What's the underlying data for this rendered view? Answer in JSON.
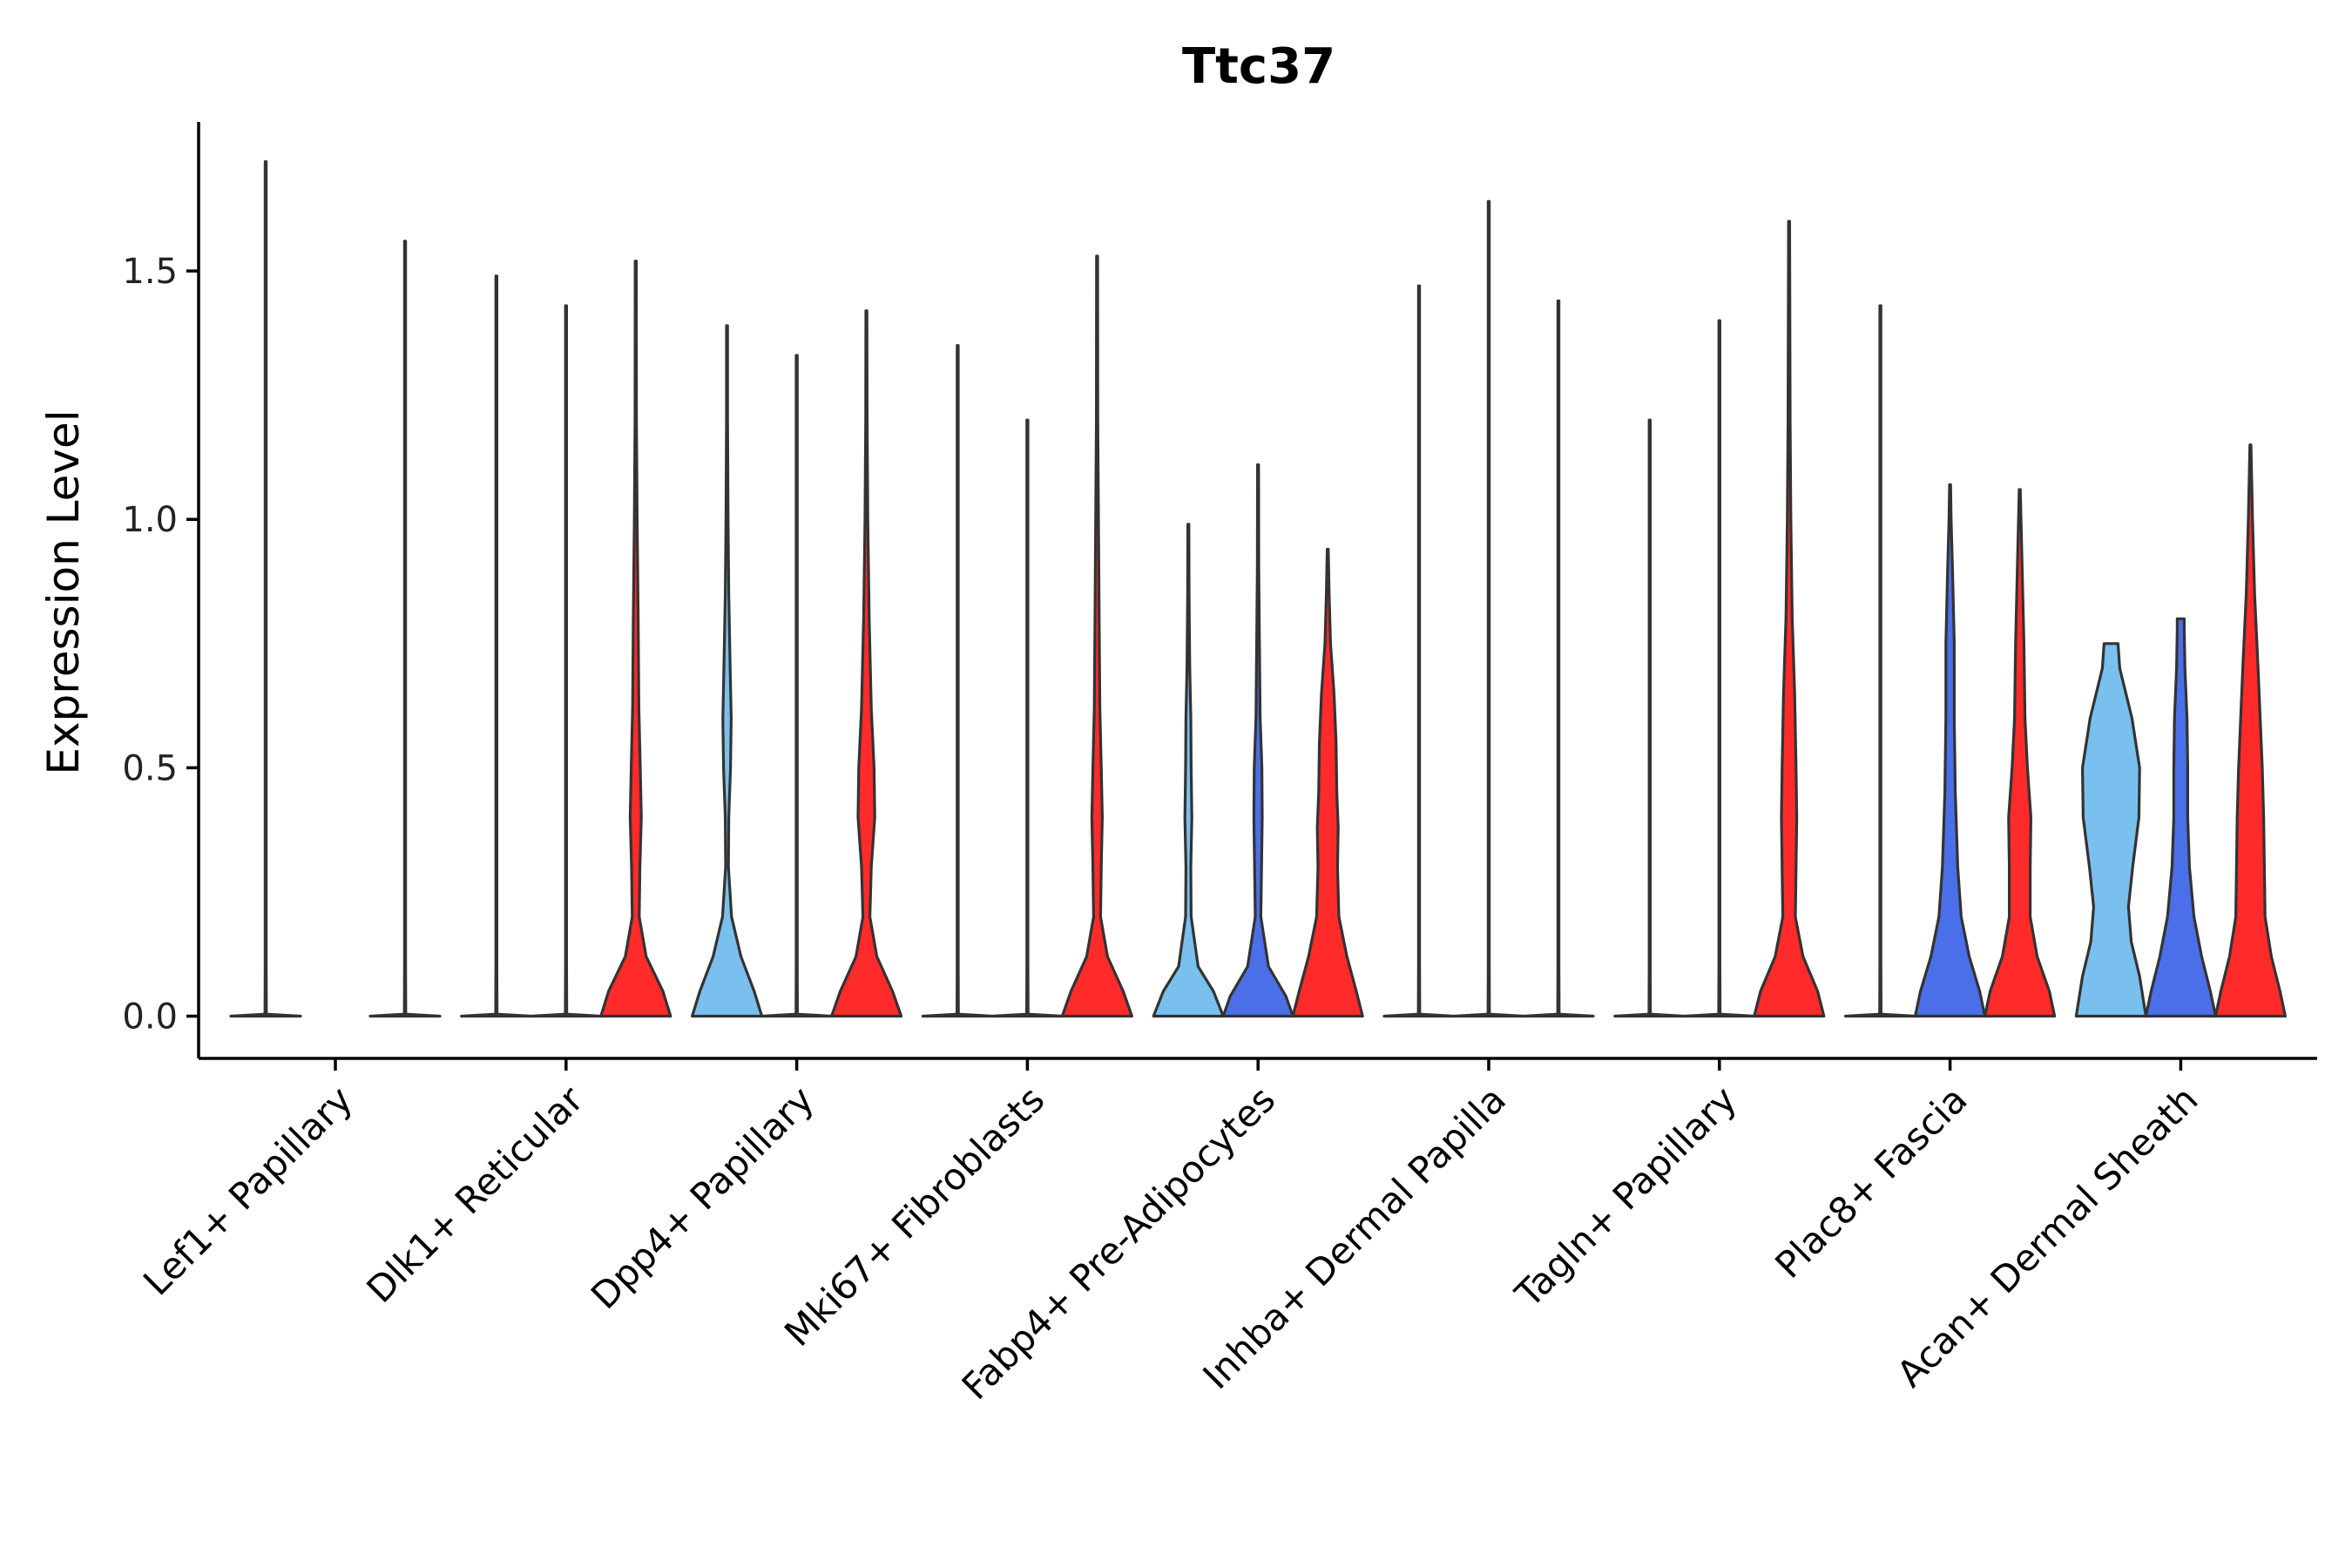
{
  "chart_data": {
    "type": "violin",
    "title": "Ttc37",
    "xlabel": "",
    "ylabel": "Expression Level",
    "ylim": [
      -0.085,
      1.8
    ],
    "yticks": [
      0.0,
      0.5,
      1.0,
      1.5
    ],
    "ytick_labels": [
      "0.0",
      "0.5",
      "1.0",
      "1.5"
    ],
    "grid": false,
    "legend": "none",
    "colors": {
      "group_a": "#7ac0ee",
      "group_b": "#4a6fe8",
      "group_c": "#ff2a2a",
      "outline": "#333333"
    },
    "categories": [
      "Lef1+ Papillary",
      "Dlk1+ Reticular",
      "Dpp4+ Papillary",
      "Mki67+ Fibroblasts",
      "Fabp4+ Pre-Adipocytes",
      "Inhba+ Dermal Papilla",
      "Tagln+ Papillary",
      "Plac8+ Fascia",
      "Acan+ Dermal Sheath"
    ],
    "violins": [
      {
        "category": "Lef1+ Papillary",
        "group": "group_a",
        "max": 1.72,
        "density": [
          [
            0,
            1
          ],
          [
            0.004,
            0.02
          ],
          [
            0.1,
            0.015
          ],
          [
            1.72,
            0.015
          ]
        ]
      },
      {
        "category": "Lef1+ Papillary",
        "group": "group_c",
        "max": 1.56,
        "density": [
          [
            0,
            1
          ],
          [
            0.004,
            0.02
          ],
          [
            0.1,
            0.015
          ],
          [
            1.56,
            0.015
          ]
        ]
      },
      {
        "category": "Dlk1+ Reticular",
        "group": "group_a",
        "max": 1.49,
        "density": [
          [
            0,
            1
          ],
          [
            0.004,
            0.02
          ],
          [
            0.1,
            0.015
          ],
          [
            1.49,
            0.015
          ]
        ]
      },
      {
        "category": "Dlk1+ Reticular",
        "group": "group_b",
        "max": 1.43,
        "density": [
          [
            0,
            1
          ],
          [
            0.004,
            0.02
          ],
          [
            0.1,
            0.015
          ],
          [
            1.43,
            0.015
          ]
        ]
      },
      {
        "category": "Dlk1+ Reticular",
        "group": "group_c",
        "max": 1.52,
        "density": [
          [
            0,
            1
          ],
          [
            0.05,
            0.78
          ],
          [
            0.12,
            0.3
          ],
          [
            0.2,
            0.1
          ],
          [
            0.3,
            0.12
          ],
          [
            0.4,
            0.16
          ],
          [
            0.5,
            0.13
          ],
          [
            0.62,
            0.09
          ],
          [
            0.8,
            0.07
          ],
          [
            1.0,
            0.04
          ],
          [
            1.2,
            0.02
          ],
          [
            1.52,
            0.015
          ]
        ]
      },
      {
        "category": "Dpp4+ Papillary",
        "group": "group_a",
        "max": 1.39,
        "density": [
          [
            0,
            1
          ],
          [
            0.05,
            0.78
          ],
          [
            0.12,
            0.4
          ],
          [
            0.2,
            0.13
          ],
          [
            0.3,
            0.04
          ],
          [
            0.4,
            0.05
          ],
          [
            0.5,
            0.1
          ],
          [
            0.6,
            0.12
          ],
          [
            0.7,
            0.09
          ],
          [
            0.85,
            0.05
          ],
          [
            1.0,
            0.03
          ],
          [
            1.2,
            0.015
          ],
          [
            1.39,
            0.015
          ]
        ]
      },
      {
        "category": "Dpp4+ Papillary",
        "group": "group_b",
        "max": 1.33,
        "density": [
          [
            0,
            1
          ],
          [
            0.004,
            0.02
          ],
          [
            0.1,
            0.015
          ],
          [
            1.33,
            0.015
          ]
        ]
      },
      {
        "category": "Dpp4+ Papillary",
        "group": "group_c",
        "max": 1.42,
        "density": [
          [
            0,
            1
          ],
          [
            0.05,
            0.75
          ],
          [
            0.12,
            0.3
          ],
          [
            0.2,
            0.1
          ],
          [
            0.3,
            0.14
          ],
          [
            0.4,
            0.24
          ],
          [
            0.5,
            0.22
          ],
          [
            0.62,
            0.14
          ],
          [
            0.8,
            0.08
          ],
          [
            1.0,
            0.04
          ],
          [
            1.2,
            0.02
          ],
          [
            1.42,
            0.015
          ]
        ]
      },
      {
        "category": "Mki67+ Fibroblasts",
        "group": "group_a",
        "max": 1.35,
        "density": [
          [
            0,
            1
          ],
          [
            0.004,
            0.02
          ],
          [
            0.1,
            0.015
          ],
          [
            1.35,
            0.015
          ]
        ]
      },
      {
        "category": "Mki67+ Fibroblasts",
        "group": "group_b",
        "max": 1.2,
        "density": [
          [
            0,
            1
          ],
          [
            0.004,
            0.02
          ],
          [
            0.1,
            0.015
          ],
          [
            1.2,
            0.015
          ]
        ]
      },
      {
        "category": "Mki67+ Fibroblasts",
        "group": "group_c",
        "max": 1.53,
        "density": [
          [
            0,
            1
          ],
          [
            0.05,
            0.75
          ],
          [
            0.12,
            0.3
          ],
          [
            0.2,
            0.1
          ],
          [
            0.3,
            0.12
          ],
          [
            0.4,
            0.15
          ],
          [
            0.5,
            0.12
          ],
          [
            0.62,
            0.08
          ],
          [
            0.8,
            0.06
          ],
          [
            1.0,
            0.04
          ],
          [
            1.2,
            0.02
          ],
          [
            1.53,
            0.015
          ]
        ]
      },
      {
        "category": "Fabp4+ Pre-Adipocytes",
        "group": "group_a",
        "max": 0.99,
        "density": [
          [
            0,
            1
          ],
          [
            0.05,
            0.72
          ],
          [
            0.1,
            0.28
          ],
          [
            0.2,
            0.08
          ],
          [
            0.3,
            0.07
          ],
          [
            0.4,
            0.1
          ],
          [
            0.5,
            0.08
          ],
          [
            0.6,
            0.07
          ],
          [
            0.7,
            0.04
          ],
          [
            0.85,
            0.02
          ],
          [
            0.99,
            0.015
          ]
        ]
      },
      {
        "category": "Fabp4+ Pre-Adipocytes",
        "group": "group_b",
        "max": 1.11,
        "density": [
          [
            0,
            1
          ],
          [
            0.04,
            0.8
          ],
          [
            0.1,
            0.3
          ],
          [
            0.2,
            0.08
          ],
          [
            0.3,
            0.1
          ],
          [
            0.4,
            0.12
          ],
          [
            0.5,
            0.11
          ],
          [
            0.6,
            0.06
          ],
          [
            0.75,
            0.04
          ],
          [
            0.9,
            0.02
          ],
          [
            1.11,
            0.015
          ]
        ]
      },
      {
        "category": "Fabp4+ Pre-Adipocytes",
        "group": "group_c",
        "max": 0.94,
        "density": [
          [
            0,
            1
          ],
          [
            0.05,
            0.82
          ],
          [
            0.12,
            0.55
          ],
          [
            0.2,
            0.32
          ],
          [
            0.3,
            0.28
          ],
          [
            0.38,
            0.3
          ],
          [
            0.45,
            0.26
          ],
          [
            0.55,
            0.24
          ],
          [
            0.65,
            0.18
          ],
          [
            0.75,
            0.08
          ],
          [
            0.85,
            0.04
          ],
          [
            0.94,
            0.015
          ]
        ]
      },
      {
        "category": "Inhba+ Dermal Papilla",
        "group": "group_a",
        "max": 1.47,
        "density": [
          [
            0,
            1
          ],
          [
            0.004,
            0.02
          ],
          [
            0.1,
            0.015
          ],
          [
            1.47,
            0.015
          ]
        ]
      },
      {
        "category": "Inhba+ Dermal Papilla",
        "group": "group_b",
        "max": 1.64,
        "density": [
          [
            0,
            1
          ],
          [
            0.004,
            0.02
          ],
          [
            0.1,
            0.015
          ],
          [
            1.64,
            0.015
          ]
        ]
      },
      {
        "category": "Inhba+ Dermal Papilla",
        "group": "group_c",
        "max": 1.44,
        "density": [
          [
            0,
            1
          ],
          [
            0.004,
            0.02
          ],
          [
            0.1,
            0.015
          ],
          [
            1.44,
            0.015
          ]
        ]
      },
      {
        "category": "Tagln+ Papillary",
        "group": "group_a",
        "max": 1.2,
        "density": [
          [
            0,
            1
          ],
          [
            0.004,
            0.02
          ],
          [
            0.1,
            0.015
          ],
          [
            1.2,
            0.015
          ]
        ]
      },
      {
        "category": "Tagln+ Papillary",
        "group": "group_b",
        "max": 1.4,
        "density": [
          [
            0,
            1
          ],
          [
            0.004,
            0.02
          ],
          [
            0.1,
            0.015
          ],
          [
            1.4,
            0.015
          ]
        ]
      },
      {
        "category": "Tagln+ Papillary",
        "group": "group_c",
        "max": 1.6,
        "density": [
          [
            0,
            1
          ],
          [
            0.05,
            0.82
          ],
          [
            0.12,
            0.4
          ],
          [
            0.2,
            0.18
          ],
          [
            0.3,
            0.2
          ],
          [
            0.4,
            0.22
          ],
          [
            0.5,
            0.2
          ],
          [
            0.65,
            0.16
          ],
          [
            0.8,
            0.09
          ],
          [
            1.0,
            0.05
          ],
          [
            1.2,
            0.03
          ],
          [
            1.6,
            0.015
          ]
        ]
      },
      {
        "category": "Plac8+ Fascia",
        "group": "group_a",
        "max": 1.43,
        "density": [
          [
            0,
            1
          ],
          [
            0.004,
            0.02
          ],
          [
            0.1,
            0.015
          ],
          [
            1.43,
            0.015
          ]
        ]
      },
      {
        "category": "Plac8+ Fascia",
        "group": "group_b",
        "max": 1.07,
        "density": [
          [
            0,
            1
          ],
          [
            0.05,
            0.85
          ],
          [
            0.12,
            0.55
          ],
          [
            0.2,
            0.32
          ],
          [
            0.3,
            0.22
          ],
          [
            0.45,
            0.15
          ],
          [
            0.6,
            0.12
          ],
          [
            0.75,
            0.12
          ],
          [
            0.9,
            0.07
          ],
          [
            1.0,
            0.03
          ],
          [
            1.07,
            0.015
          ]
        ]
      },
      {
        "category": "Plac8+ Fascia",
        "group": "group_c",
        "max": 1.06,
        "density": [
          [
            0,
            1
          ],
          [
            0.05,
            0.85
          ],
          [
            0.12,
            0.5
          ],
          [
            0.2,
            0.3
          ],
          [
            0.3,
            0.3
          ],
          [
            0.4,
            0.32
          ],
          [
            0.5,
            0.22
          ],
          [
            0.6,
            0.15
          ],
          [
            0.75,
            0.12
          ],
          [
            0.9,
            0.07
          ],
          [
            1.06,
            0.015
          ]
        ]
      },
      {
        "category": "Acan+ Dermal Sheath",
        "group": "group_a",
        "max": 0.75,
        "density": [
          [
            0,
            1
          ],
          [
            0.08,
            0.82
          ],
          [
            0.15,
            0.58
          ],
          [
            0.22,
            0.5
          ],
          [
            0.3,
            0.62
          ],
          [
            0.4,
            0.8
          ],
          [
            0.5,
            0.82
          ],
          [
            0.6,
            0.6
          ],
          [
            0.7,
            0.25
          ],
          [
            0.75,
            0.2
          ]
        ]
      },
      {
        "category": "Acan+ Dermal Sheath",
        "group": "group_b",
        "max": 0.8,
        "density": [
          [
            0,
            1
          ],
          [
            0.05,
            0.85
          ],
          [
            0.12,
            0.6
          ],
          [
            0.2,
            0.38
          ],
          [
            0.3,
            0.25
          ],
          [
            0.4,
            0.2
          ],
          [
            0.5,
            0.2
          ],
          [
            0.6,
            0.18
          ],
          [
            0.7,
            0.12
          ],
          [
            0.78,
            0.1
          ],
          [
            0.8,
            0.1
          ]
        ]
      },
      {
        "category": "Acan+ Dermal Sheath",
        "group": "group_c",
        "max": 1.15,
        "density": [
          [
            0,
            1
          ],
          [
            0.05,
            0.85
          ],
          [
            0.12,
            0.6
          ],
          [
            0.2,
            0.42
          ],
          [
            0.3,
            0.4
          ],
          [
            0.4,
            0.38
          ],
          [
            0.5,
            0.34
          ],
          [
            0.6,
            0.28
          ],
          [
            0.7,
            0.22
          ],
          [
            0.85,
            0.12
          ],
          [
            1.0,
            0.06
          ],
          [
            1.15,
            0.015
          ]
        ]
      }
    ]
  }
}
